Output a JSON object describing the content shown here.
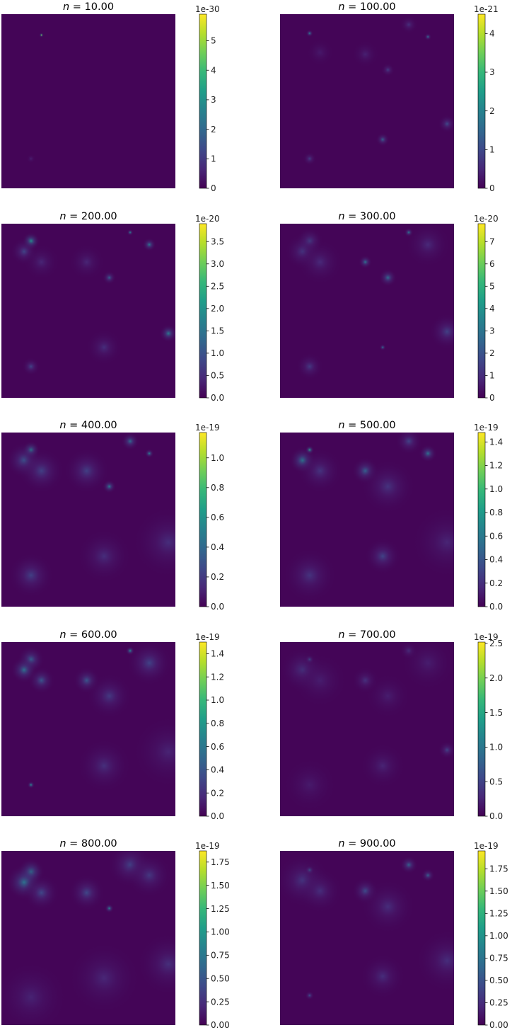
{
  "chart_data": [
    {
      "type": "heatmap",
      "title_prefix": "n",
      "title_value": "10.00",
      "title": "n = 10.00",
      "colormap": "viridis",
      "colorbar": {
        "exponent": "1e-30",
        "min": 0,
        "max": 5.9,
        "ticks": [
          "0",
          "1",
          "2",
          "3",
          "4",
          "5"
        ]
      },
      "spots": [
        {
          "x": 0.23,
          "y": 0.12,
          "intensity": 5.9,
          "spread": 0.005
        },
        {
          "x": 0.17,
          "y": 0.83,
          "intensity": 0.5,
          "spread": 0.01
        }
      ]
    },
    {
      "type": "heatmap",
      "title_prefix": "n",
      "title_value": "100.00",
      "title": "n = 100.00",
      "colormap": "viridis",
      "colorbar": {
        "exponent": "1e-21",
        "min": 0,
        "max": 4.5,
        "ticks": [
          "0",
          "1",
          "2",
          "3",
          "4"
        ]
      },
      "spots": [
        {
          "x": 0.17,
          "y": 0.11,
          "intensity": 2.2,
          "spread": 0.008
        },
        {
          "x": 0.85,
          "y": 0.13,
          "intensity": 1.8,
          "spread": 0.008
        },
        {
          "x": 0.74,
          "y": 0.06,
          "intensity": 0.6,
          "spread": 0.02
        },
        {
          "x": 0.49,
          "y": 0.23,
          "intensity": 0.4,
          "spread": 0.03
        },
        {
          "x": 0.23,
          "y": 0.22,
          "intensity": 0.3,
          "spread": 0.03
        },
        {
          "x": 0.62,
          "y": 0.32,
          "intensity": 0.8,
          "spread": 0.015
        },
        {
          "x": 0.96,
          "y": 0.63,
          "intensity": 1.0,
          "spread": 0.02
        },
        {
          "x": 0.59,
          "y": 0.72,
          "intensity": 1.4,
          "spread": 0.015
        },
        {
          "x": 0.17,
          "y": 0.83,
          "intensity": 0.8,
          "spread": 0.015
        }
      ]
    },
    {
      "type": "heatmap",
      "title_prefix": "n",
      "title_value": "200.00",
      "title": "n = 200.00",
      "colormap": "viridis",
      "colorbar": {
        "exponent": "1e-20",
        "min": 0,
        "max": 3.9,
        "ticks": [
          "0.0",
          "0.5",
          "1.0",
          "1.5",
          "2.0",
          "2.5",
          "3.0",
          "3.5"
        ]
      },
      "spots": [
        {
          "x": 0.17,
          "y": 0.1,
          "intensity": 2.0,
          "spread": 0.02
        },
        {
          "x": 0.13,
          "y": 0.16,
          "intensity": 0.8,
          "spread": 0.03
        },
        {
          "x": 0.23,
          "y": 0.22,
          "intensity": 0.4,
          "spread": 0.04
        },
        {
          "x": 0.74,
          "y": 0.05,
          "intensity": 2.0,
          "spread": 0.007
        },
        {
          "x": 0.85,
          "y": 0.12,
          "intensity": 1.6,
          "spread": 0.015
        },
        {
          "x": 0.49,
          "y": 0.22,
          "intensity": 0.4,
          "spread": 0.04
        },
        {
          "x": 0.62,
          "y": 0.31,
          "intensity": 1.2,
          "spread": 0.015
        },
        {
          "x": 0.96,
          "y": 0.63,
          "intensity": 1.6,
          "spread": 0.02
        },
        {
          "x": 0.59,
          "y": 0.71,
          "intensity": 0.5,
          "spread": 0.04
        },
        {
          "x": 0.17,
          "y": 0.82,
          "intensity": 0.8,
          "spread": 0.02
        }
      ]
    },
    {
      "type": "heatmap",
      "title_prefix": "n",
      "title_value": "300.00",
      "title": "n = 300.00",
      "colormap": "viridis",
      "colorbar": {
        "exponent": "1e-20",
        "min": 0,
        "max": 7.8,
        "ticks": [
          "0",
          "1",
          "2",
          "3",
          "4",
          "5",
          "6",
          "7"
        ]
      },
      "spots": [
        {
          "x": 0.17,
          "y": 0.1,
          "intensity": 1.6,
          "spread": 0.03
        },
        {
          "x": 0.13,
          "y": 0.16,
          "intensity": 1.2,
          "spread": 0.04
        },
        {
          "x": 0.23,
          "y": 0.22,
          "intensity": 0.9,
          "spread": 0.05
        },
        {
          "x": 0.74,
          "y": 0.05,
          "intensity": 3.4,
          "spread": 0.01
        },
        {
          "x": 0.85,
          "y": 0.12,
          "intensity": 0.9,
          "spread": 0.05
        },
        {
          "x": 0.49,
          "y": 0.22,
          "intensity": 3.0,
          "spread": 0.015
        },
        {
          "x": 0.62,
          "y": 0.31,
          "intensity": 2.8,
          "spread": 0.02
        },
        {
          "x": 0.96,
          "y": 0.62,
          "intensity": 1.5,
          "spread": 0.04
        },
        {
          "x": 0.59,
          "y": 0.71,
          "intensity": 3.4,
          "spread": 0.007
        },
        {
          "x": 0.17,
          "y": 0.82,
          "intensity": 1.3,
          "spread": 0.03
        }
      ]
    },
    {
      "type": "heatmap",
      "title_prefix": "n",
      "title_value": "400.00",
      "title": "n = 400.00",
      "colormap": "viridis",
      "colorbar": {
        "exponent": "1e-19",
        "min": 0,
        "max": 1.17,
        "ticks": [
          "0.0",
          "0.2",
          "0.4",
          "0.6",
          "0.8",
          "1.0"
        ]
      },
      "spots": [
        {
          "x": 0.17,
          "y": 0.1,
          "intensity": 0.55,
          "spread": 0.02
        },
        {
          "x": 0.13,
          "y": 0.16,
          "intensity": 0.3,
          "spread": 0.04
        },
        {
          "x": 0.23,
          "y": 0.22,
          "intensity": 0.22,
          "spread": 0.05
        },
        {
          "x": 0.74,
          "y": 0.05,
          "intensity": 0.4,
          "spread": 0.02
        },
        {
          "x": 0.85,
          "y": 0.12,
          "intensity": 0.55,
          "spread": 0.01
        },
        {
          "x": 0.49,
          "y": 0.22,
          "intensity": 0.22,
          "spread": 0.05
        },
        {
          "x": 0.62,
          "y": 0.31,
          "intensity": 0.5,
          "spread": 0.015
        },
        {
          "x": 0.96,
          "y": 0.63,
          "intensity": 0.15,
          "spread": 0.08
        },
        {
          "x": 0.59,
          "y": 0.71,
          "intensity": 0.15,
          "spread": 0.06
        },
        {
          "x": 0.17,
          "y": 0.82,
          "intensity": 0.22,
          "spread": 0.05
        }
      ]
    },
    {
      "type": "heatmap",
      "title_prefix": "n",
      "title_value": "500.00",
      "title": "n = 500.00",
      "colormap": "viridis",
      "colorbar": {
        "exponent": "1e-19",
        "min": 0,
        "max": 1.48,
        "ticks": [
          "0.0",
          "0.2",
          "0.4",
          "0.6",
          "0.8",
          "1.0",
          "1.2",
          "1.4"
        ]
      },
      "spots": [
        {
          "x": 0.17,
          "y": 0.1,
          "intensity": 0.9,
          "spread": 0.01
        },
        {
          "x": 0.13,
          "y": 0.16,
          "intensity": 0.6,
          "spread": 0.03
        },
        {
          "x": 0.23,
          "y": 0.22,
          "intensity": 0.22,
          "spread": 0.05
        },
        {
          "x": 0.74,
          "y": 0.05,
          "intensity": 0.3,
          "spread": 0.03
        },
        {
          "x": 0.85,
          "y": 0.12,
          "intensity": 0.55,
          "spread": 0.02
        },
        {
          "x": 0.49,
          "y": 0.22,
          "intensity": 0.45,
          "spread": 0.03
        },
        {
          "x": 0.62,
          "y": 0.31,
          "intensity": 0.22,
          "spread": 0.06
        },
        {
          "x": 0.96,
          "y": 0.63,
          "intensity": 0.15,
          "spread": 0.08
        },
        {
          "x": 0.59,
          "y": 0.71,
          "intensity": 0.3,
          "spread": 0.04
        },
        {
          "x": 0.17,
          "y": 0.82,
          "intensity": 0.22,
          "spread": 0.06
        }
      ]
    },
    {
      "type": "heatmap",
      "title_prefix": "n",
      "title_value": "600.00",
      "title": "n = 600.00",
      "colormap": "viridis",
      "colorbar": {
        "exponent": "1e-19",
        "min": 0,
        "max": 1.5,
        "ticks": [
          "0.0",
          "0.2",
          "0.4",
          "0.6",
          "0.8",
          "1.0",
          "1.2",
          "1.4"
        ]
      },
      "spots": [
        {
          "x": 0.17,
          "y": 0.1,
          "intensity": 0.45,
          "spread": 0.03
        },
        {
          "x": 0.13,
          "y": 0.16,
          "intensity": 0.55,
          "spread": 0.03
        },
        {
          "x": 0.23,
          "y": 0.22,
          "intensity": 0.4,
          "spread": 0.03
        },
        {
          "x": 0.74,
          "y": 0.05,
          "intensity": 0.75,
          "spread": 0.01
        },
        {
          "x": 0.85,
          "y": 0.12,
          "intensity": 0.3,
          "spread": 0.05
        },
        {
          "x": 0.49,
          "y": 0.22,
          "intensity": 0.4,
          "spread": 0.03
        },
        {
          "x": 0.62,
          "y": 0.31,
          "intensity": 0.25,
          "spread": 0.05
        },
        {
          "x": 0.96,
          "y": 0.63,
          "intensity": 0.15,
          "spread": 0.08
        },
        {
          "x": 0.59,
          "y": 0.71,
          "intensity": 0.2,
          "spread": 0.06
        },
        {
          "x": 0.17,
          "y": 0.82,
          "intensity": 0.8,
          "spread": 0.008
        }
      ]
    },
    {
      "type": "heatmap",
      "title_prefix": "n",
      "title_value": "700.00",
      "title": "n = 700.00",
      "colormap": "viridis",
      "colorbar": {
        "exponent": "1e-19",
        "min": 0,
        "max": 2.52,
        "ticks": [
          "0.0",
          "0.5",
          "1.0",
          "1.5",
          "2.0",
          "2.5"
        ]
      },
      "spots": [
        {
          "x": 0.17,
          "y": 0.1,
          "intensity": 0.9,
          "spread": 0.01
        },
        {
          "x": 0.13,
          "y": 0.16,
          "intensity": 0.4,
          "spread": 0.05
        },
        {
          "x": 0.23,
          "y": 0.22,
          "intensity": 0.2,
          "spread": 0.06
        },
        {
          "x": 0.74,
          "y": 0.05,
          "intensity": 0.35,
          "spread": 0.02
        },
        {
          "x": 0.85,
          "y": 0.12,
          "intensity": 0.2,
          "spread": 0.06
        },
        {
          "x": 0.49,
          "y": 0.22,
          "intensity": 0.35,
          "spread": 0.03
        },
        {
          "x": 0.62,
          "y": 0.31,
          "intensity": 0.2,
          "spread": 0.05
        },
        {
          "x": 0.96,
          "y": 0.62,
          "intensity": 0.5,
          "spread": 0.02
        },
        {
          "x": 0.59,
          "y": 0.71,
          "intensity": 0.25,
          "spread": 0.05
        },
        {
          "x": 0.17,
          "y": 0.82,
          "intensity": 0.18,
          "spread": 0.06
        }
      ]
    },
    {
      "type": "heatmap",
      "title_prefix": "n",
      "title_value": "800.00",
      "title": "n = 800.00",
      "colormap": "viridis",
      "colorbar": {
        "exponent": "1e-19",
        "min": 0,
        "max": 1.87,
        "ticks": [
          "0.00",
          "0.25",
          "0.50",
          "0.75",
          "1.00",
          "1.25",
          "1.50",
          "1.75"
        ]
      },
      "spots": [
        {
          "x": 0.17,
          "y": 0.12,
          "intensity": 0.75,
          "spread": 0.03
        },
        {
          "x": 0.13,
          "y": 0.18,
          "intensity": 0.7,
          "spread": 0.04
        },
        {
          "x": 0.23,
          "y": 0.24,
          "intensity": 0.4,
          "spread": 0.04
        },
        {
          "x": 0.74,
          "y": 0.08,
          "intensity": 0.35,
          "spread": 0.05
        },
        {
          "x": 0.85,
          "y": 0.14,
          "intensity": 0.3,
          "spread": 0.05
        },
        {
          "x": 0.49,
          "y": 0.24,
          "intensity": 0.4,
          "spread": 0.04
        },
        {
          "x": 0.62,
          "y": 0.33,
          "intensity": 0.9,
          "spread": 0.01
        },
        {
          "x": 0.96,
          "y": 0.65,
          "intensity": 0.25,
          "spread": 0.07
        },
        {
          "x": 0.59,
          "y": 0.73,
          "intensity": 0.2,
          "spread": 0.08
        },
        {
          "x": 0.17,
          "y": 0.84,
          "intensity": 0.18,
          "spread": 0.08
        }
      ]
    },
    {
      "type": "heatmap",
      "title_prefix": "n",
      "title_value": "900.00",
      "title": "n = 900.00",
      "colormap": "viridis",
      "colorbar": {
        "exponent": "1e-19",
        "min": 0,
        "max": 1.95,
        "ticks": [
          "0.00",
          "0.25",
          "0.50",
          "0.75",
          "1.00",
          "1.25",
          "1.50",
          "1.75"
        ]
      },
      "spots": [
        {
          "x": 0.17,
          "y": 0.11,
          "intensity": 0.8,
          "spread": 0.01
        },
        {
          "x": 0.13,
          "y": 0.17,
          "intensity": 0.3,
          "spread": 0.06
        },
        {
          "x": 0.23,
          "y": 0.23,
          "intensity": 0.25,
          "spread": 0.05
        },
        {
          "x": 0.74,
          "y": 0.08,
          "intensity": 0.6,
          "spread": 0.02
        },
        {
          "x": 0.85,
          "y": 0.14,
          "intensity": 0.6,
          "spread": 0.015
        },
        {
          "x": 0.49,
          "y": 0.23,
          "intensity": 0.45,
          "spread": 0.03
        },
        {
          "x": 0.62,
          "y": 0.32,
          "intensity": 0.25,
          "spread": 0.06
        },
        {
          "x": 0.96,
          "y": 0.63,
          "intensity": 0.25,
          "spread": 0.07
        },
        {
          "x": 0.59,
          "y": 0.72,
          "intensity": 0.25,
          "spread": 0.05
        },
        {
          "x": 0.17,
          "y": 0.83,
          "intensity": 0.5,
          "spread": 0.01
        }
      ]
    }
  ]
}
